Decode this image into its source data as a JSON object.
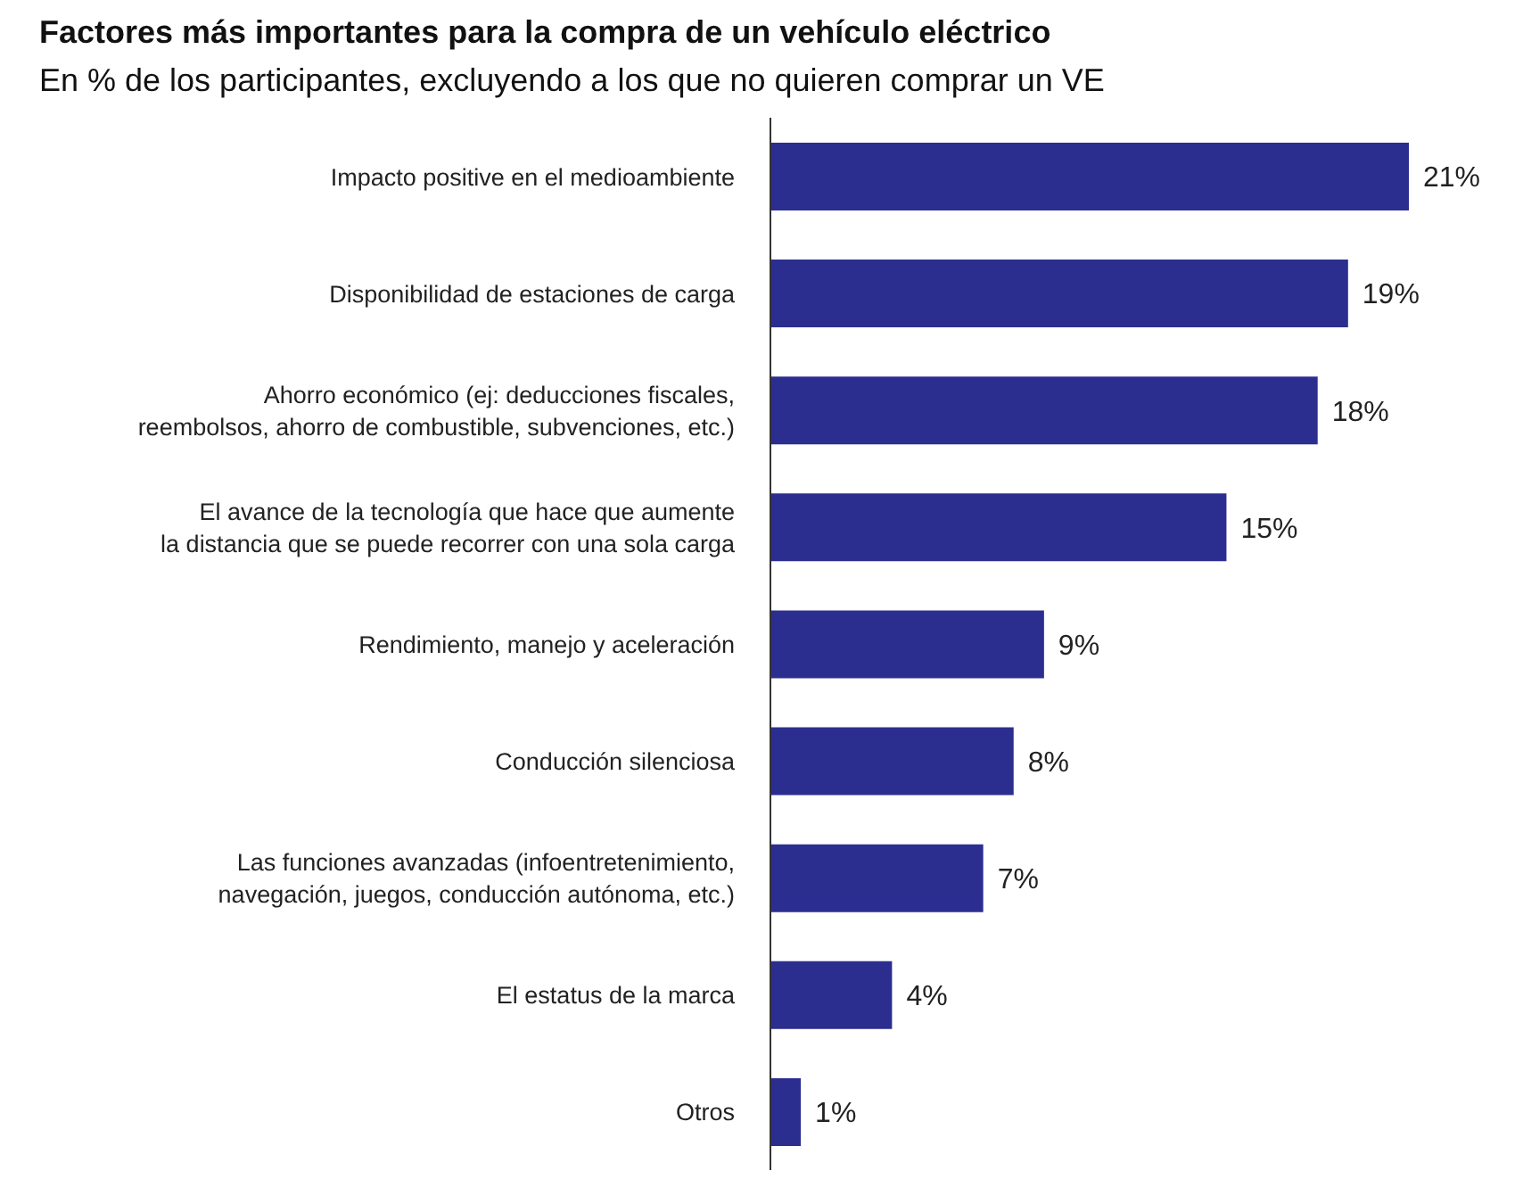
{
  "chart_data": {
    "type": "bar",
    "orientation": "horizontal",
    "title": "Factores más importantes para la compra de un vehículo eléctrico",
    "subtitle": "En % de los participantes, excluyendo a los que no quieren comprar un VE",
    "categories": [
      "Impacto positive en el medioambiente",
      "Disponibilidad de estaciones de carga",
      "Ahorro económico (ej: deducciones fiscales, reembolsos, ahorro de combustible, subvenciones, etc.)",
      "El avance de la tecnología que hace que aumente la distancia que se puede recorrer con una sola carga",
      "Rendimiento, manejo y aceleración",
      "Conducción silenciosa",
      "Las funciones avanzadas (infoentretenimiento, navegación, juegos, conducción autónoma, etc.)",
      "El estatus de la marca",
      "Otros"
    ],
    "values": [
      21,
      19,
      18,
      15,
      9,
      8,
      7,
      4,
      1
    ],
    "value_labels": [
      "21%",
      "19%",
      "18%",
      "15%",
      "9%",
      "8%",
      "7%",
      "4%",
      "1%"
    ],
    "color": "#2b2e8f",
    "tick_labels": "y",
    "grid": false
  }
}
